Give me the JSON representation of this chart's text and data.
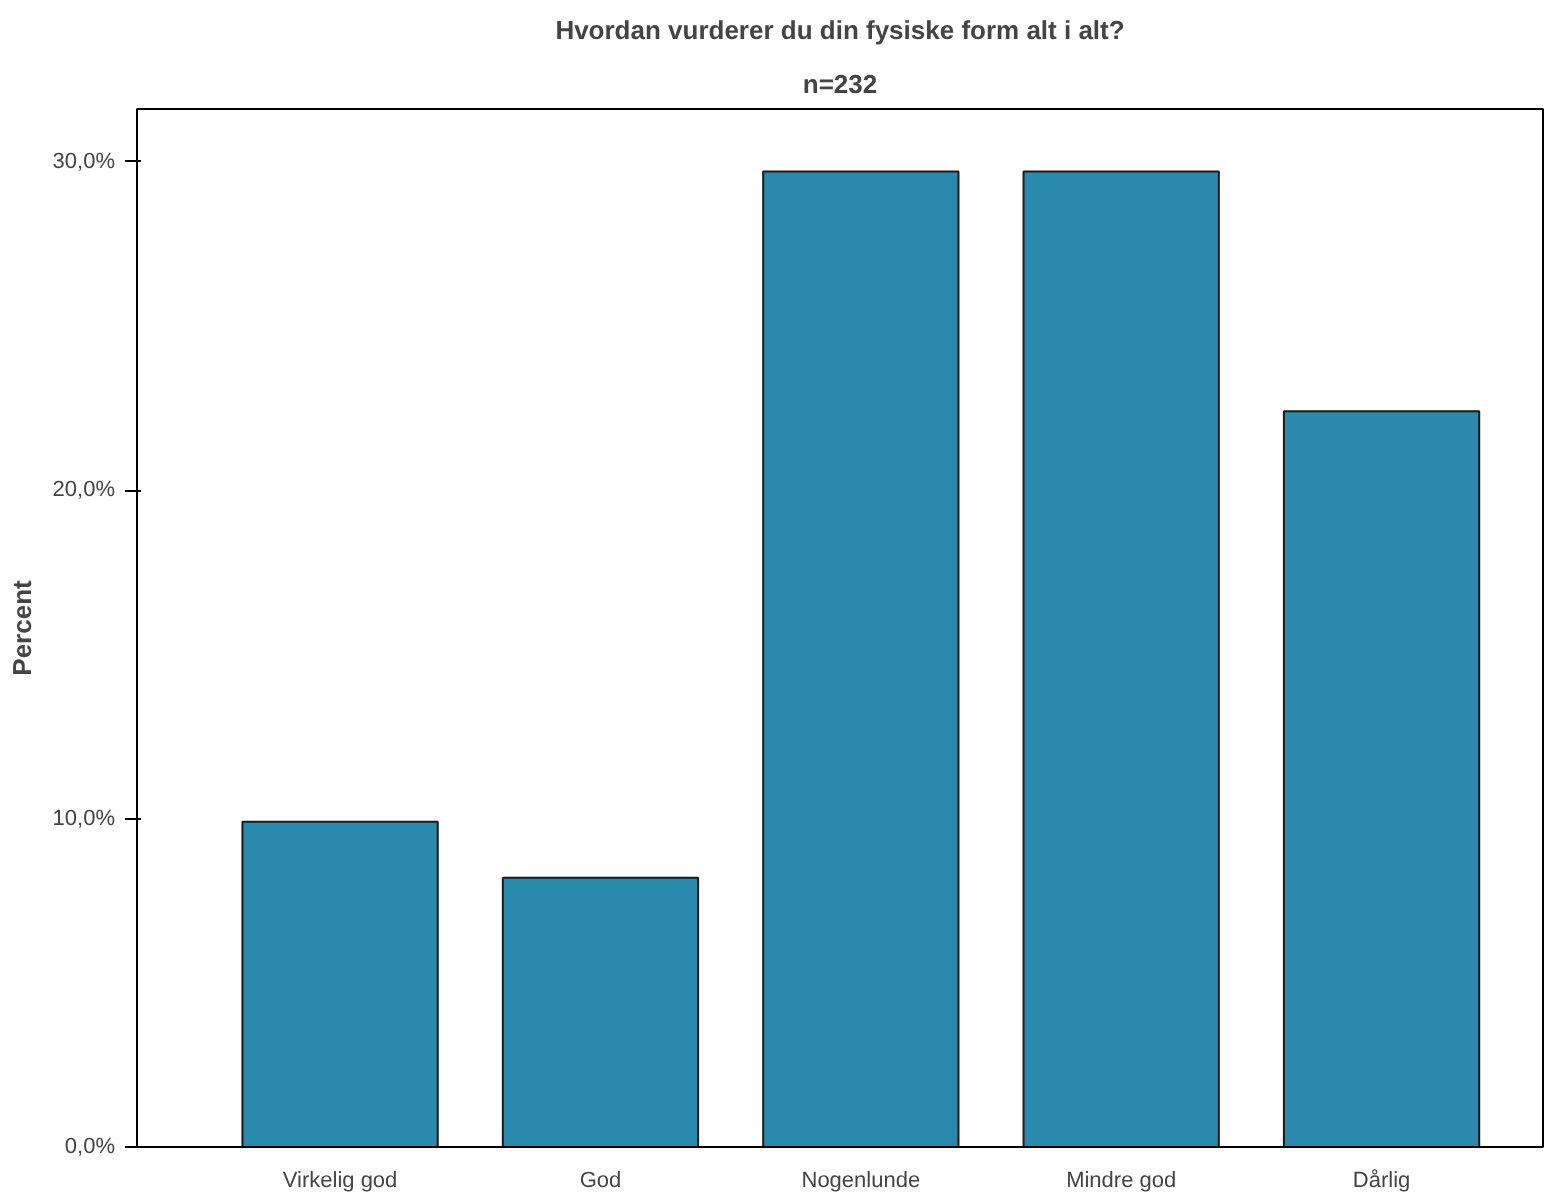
{
  "chart_data": {
    "type": "bar",
    "title": "Hvordan vurderer du din fysiske form alt i alt?",
    "subtitle": "n=232",
    "ylabel": "Percent",
    "categories": [
      "Virkelig god",
      "God",
      "Nogenlunde",
      "Mindre god",
      "Dårlig"
    ],
    "values": [
      9.9,
      8.2,
      29.7,
      29.7,
      22.4
    ],
    "color": "#2a8aad",
    "ylim": [
      0,
      31.6
    ],
    "yticks": [
      {
        "value": 0,
        "label": "0,0%"
      },
      {
        "value": 10,
        "label": "10,0%"
      },
      {
        "value": 20,
        "label": "20,0%"
      },
      {
        "value": 30,
        "label": "30,0%"
      }
    ],
    "grid": false
  }
}
